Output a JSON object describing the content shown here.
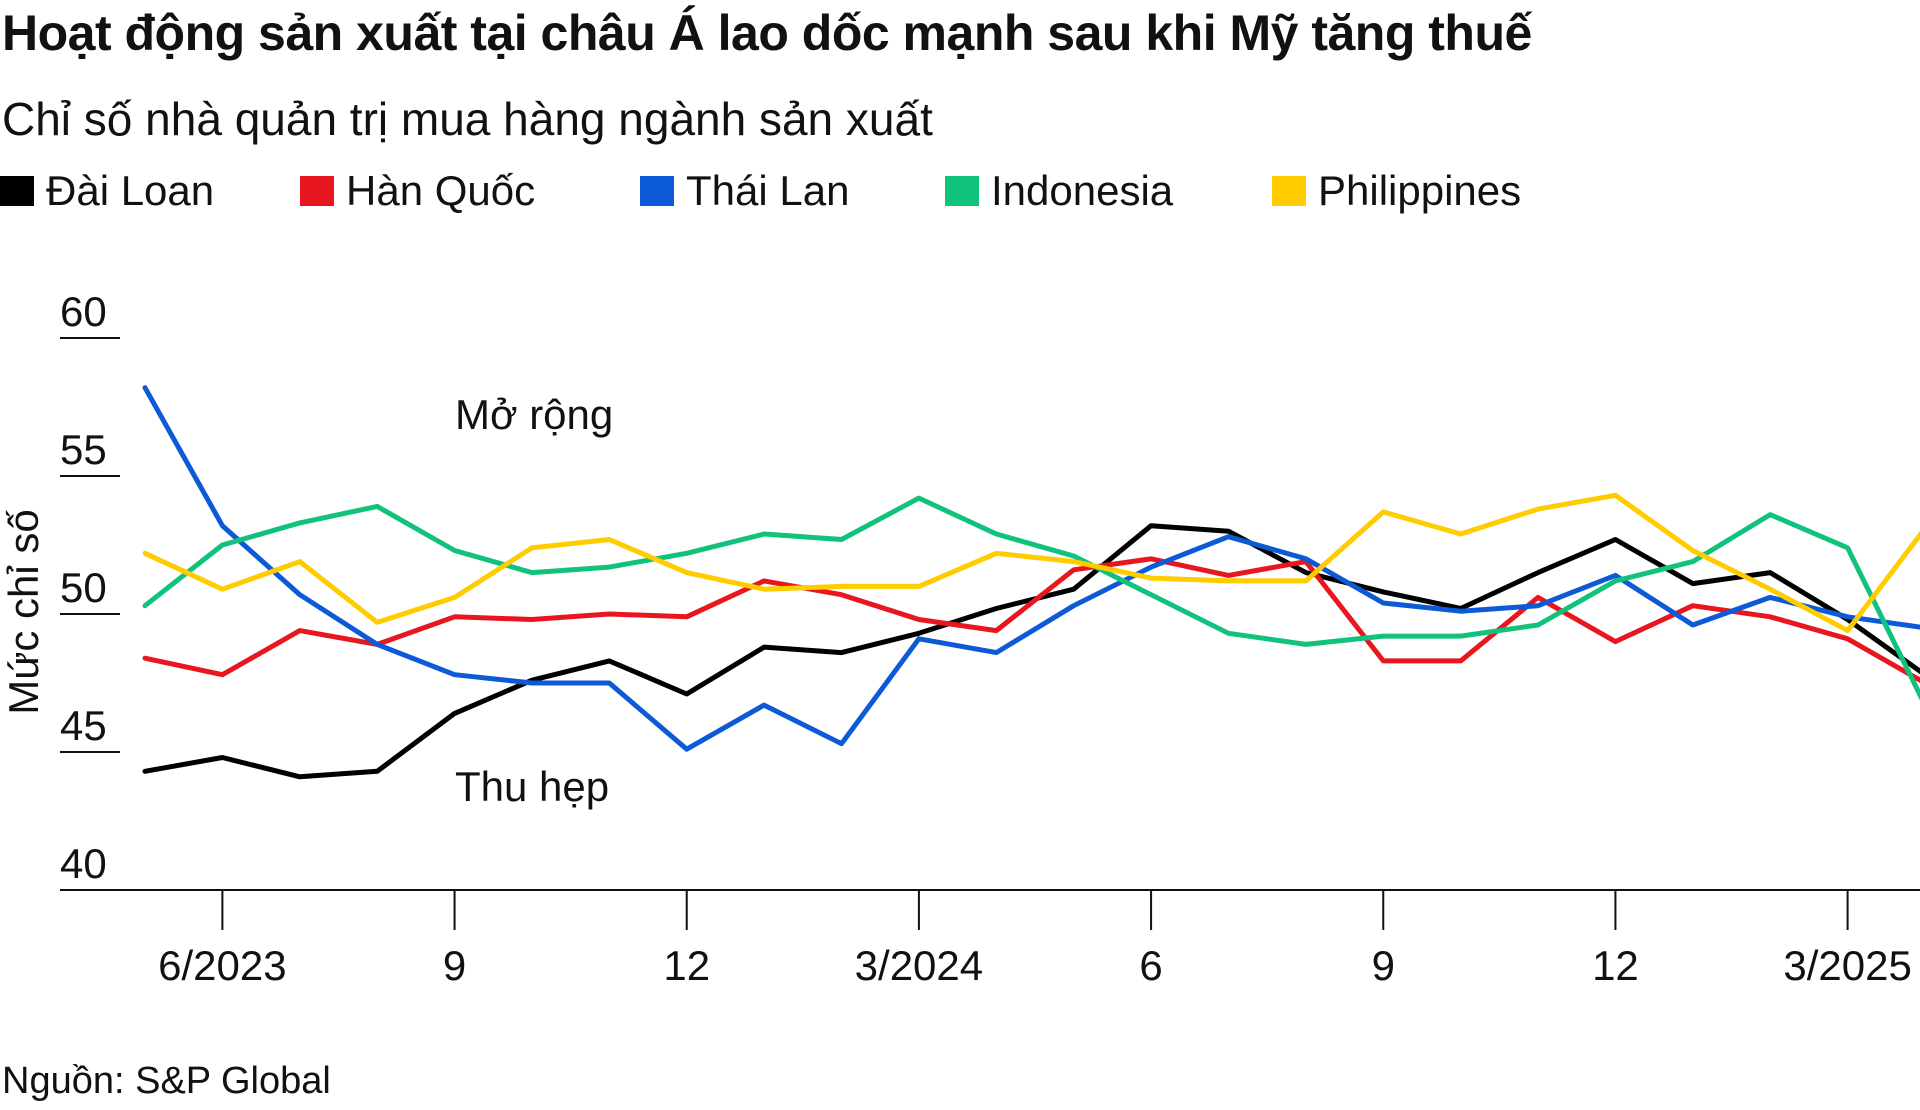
{
  "title": "Hoạt động sản xuất tại châu Á lao dốc mạnh sau khi Mỹ tăng thuế",
  "subtitle": "Chỉ số nhà quản trị mua hàng ngành sản xuất",
  "source": "Nguồn: S&P Global",
  "legend": [
    {
      "name": "Đài Loan",
      "color": "#000000"
    },
    {
      "name": "Hàn Quốc",
      "color": "#e8161f"
    },
    {
      "name": "Thái Lan",
      "color": "#0c5ad6"
    },
    {
      "name": "Indonesia",
      "color": "#10c27c"
    },
    {
      "name": "Philippines",
      "color": "#ffcc00"
    }
  ],
  "chart_data": {
    "type": "line",
    "title": "Hoạt động sản xuất tại châu Á lao dốc mạnh sau khi Mỹ tăng thuế",
    "subtitle": "Chỉ số nhà quản trị mua hàng ngành sản xuất",
    "ylabel": "Mức chỉ số",
    "xlabel": "",
    "ylim": [
      40,
      60
    ],
    "yticks": [
      40,
      45,
      50,
      55,
      60
    ],
    "x": [
      "5/2023",
      "6/2023",
      "7/2023",
      "8/2023",
      "9/2023",
      "10/2023",
      "11/2023",
      "12/2023",
      "1/2024",
      "2/2024",
      "3/2024",
      "4/2024",
      "5/2024",
      "6/2024",
      "7/2024",
      "8/2024",
      "9/2024",
      "10/2024",
      "11/2024",
      "12/2024",
      "1/2025",
      "2/2025",
      "3/2025",
      "4/2025"
    ],
    "xtick_labels": [
      {
        "x": "6/2023",
        "label": "6/2023"
      },
      {
        "x": "9/2023",
        "label": "9"
      },
      {
        "x": "12/2023",
        "label": "12"
      },
      {
        "x": "3/2024",
        "label": "3/2024"
      },
      {
        "x": "6/2024",
        "label": "6"
      },
      {
        "x": "9/2024",
        "label": "9"
      },
      {
        "x": "12/2024",
        "label": "12"
      },
      {
        "x": "3/2025",
        "label": "3/2025"
      }
    ],
    "series": [
      {
        "name": "Đài Loan",
        "color": "#000000",
        "values": [
          44.3,
          44.8,
          44.1,
          44.3,
          46.4,
          47.6,
          48.3,
          47.1,
          48.8,
          48.6,
          49.3,
          50.2,
          50.9,
          53.2,
          53.0,
          51.5,
          50.8,
          50.2,
          51.5,
          52.7,
          51.1,
          51.5,
          49.8,
          47.8
        ]
      },
      {
        "name": "Hàn Quốc",
        "color": "#e8161f",
        "values": [
          48.4,
          47.8,
          49.4,
          48.9,
          49.9,
          49.8,
          50.0,
          49.9,
          51.2,
          50.7,
          49.8,
          49.4,
          51.6,
          52.0,
          51.4,
          51.9,
          48.3,
          48.3,
          50.6,
          49.0,
          50.3,
          49.9,
          49.1,
          47.5
        ]
      },
      {
        "name": "Thái Lan",
        "color": "#0c5ad6",
        "values": [
          58.2,
          53.2,
          50.7,
          48.9,
          47.8,
          47.5,
          47.5,
          45.1,
          46.7,
          45.3,
          49.1,
          48.6,
          50.3,
          51.7,
          52.8,
          52.0,
          50.4,
          50.1,
          50.3,
          51.4,
          49.6,
          50.6,
          49.9,
          49.5
        ]
      },
      {
        "name": "Indonesia",
        "color": "#10c27c",
        "values": [
          50.3,
          52.5,
          53.3,
          53.9,
          52.3,
          51.5,
          51.7,
          52.2,
          52.9,
          52.7,
          54.2,
          52.9,
          52.1,
          50.7,
          49.3,
          48.9,
          49.2,
          49.2,
          49.6,
          51.2,
          51.9,
          53.6,
          52.4,
          46.7
        ]
      },
      {
        "name": "Philippines",
        "color": "#ffcc00",
        "values": [
          52.2,
          50.9,
          51.9,
          49.7,
          50.6,
          52.4,
          52.7,
          51.5,
          50.9,
          51.0,
          51.0,
          52.2,
          51.9,
          51.3,
          51.2,
          51.2,
          53.7,
          52.9,
          53.8,
          54.3,
          52.3,
          50.9,
          49.4,
          53.1
        ]
      }
    ],
    "annotations": [
      "Mở rộng",
      "Thu hẹp"
    ],
    "grid": false,
    "legend_position": "top-left"
  }
}
